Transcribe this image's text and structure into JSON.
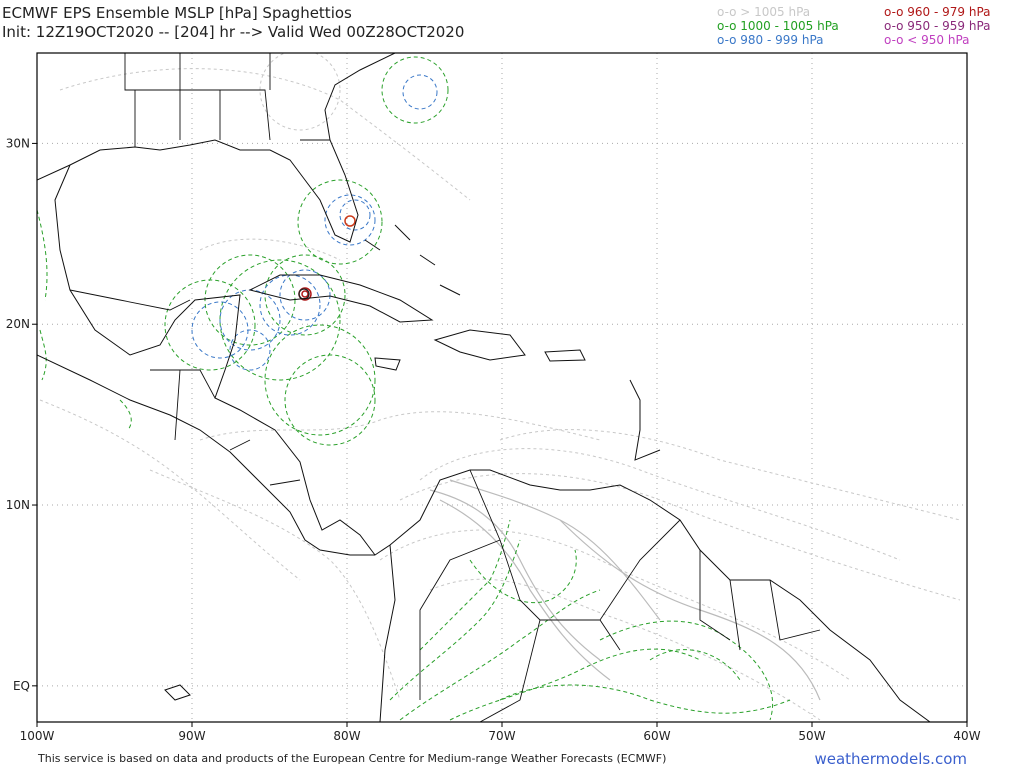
{
  "header": {
    "title": "ECMWF EPS Ensemble MSLP [hPa] Spaghettios",
    "subtitle": "Init: 12Z19OCT2020 -- [204] hr --> Valid Wed 00Z28OCT2020"
  },
  "legend": [
    {
      "label": "o-o > 1005 hPa",
      "color": "#c8c8c8"
    },
    {
      "label": "o-o 1000 - 1005 hPa",
      "color": "#22a022"
    },
    {
      "label": "o-o 980 - 999 hPa",
      "color": "#3a78c8"
    },
    {
      "label": "o-o 960 - 979 hPa",
      "color": "#b01818"
    },
    {
      "label": "o-o 950 - 959 hPa",
      "color": "#8a2a7a"
    },
    {
      "label": "o-o < 950 hPa",
      "color": "#c040c0"
    }
  ],
  "map": {
    "xlim": [
      -100,
      -40
    ],
    "ylim": [
      -2,
      35
    ],
    "grid": true,
    "xticks": [
      {
        "value": -100,
        "label": "100W"
      },
      {
        "value": -90,
        "label": "90W"
      },
      {
        "value": -80,
        "label": "80W"
      },
      {
        "value": -70,
        "label": "70W"
      },
      {
        "value": -60,
        "label": "60W"
      },
      {
        "value": -50,
        "label": "50W"
      },
      {
        "value": -40,
        "label": "40W"
      }
    ],
    "yticks": [
      {
        "value": 0,
        "label": "EQ"
      },
      {
        "value": 10,
        "label": "10N"
      },
      {
        "value": 20,
        "label": "20N"
      },
      {
        "value": 30,
        "label": "30N"
      }
    ]
  },
  "footer": {
    "text": "This service is based on data and products of the European Centre for Medium-range Weather Forecasts (ECMWF)",
    "brand": "weathermodels.com"
  }
}
